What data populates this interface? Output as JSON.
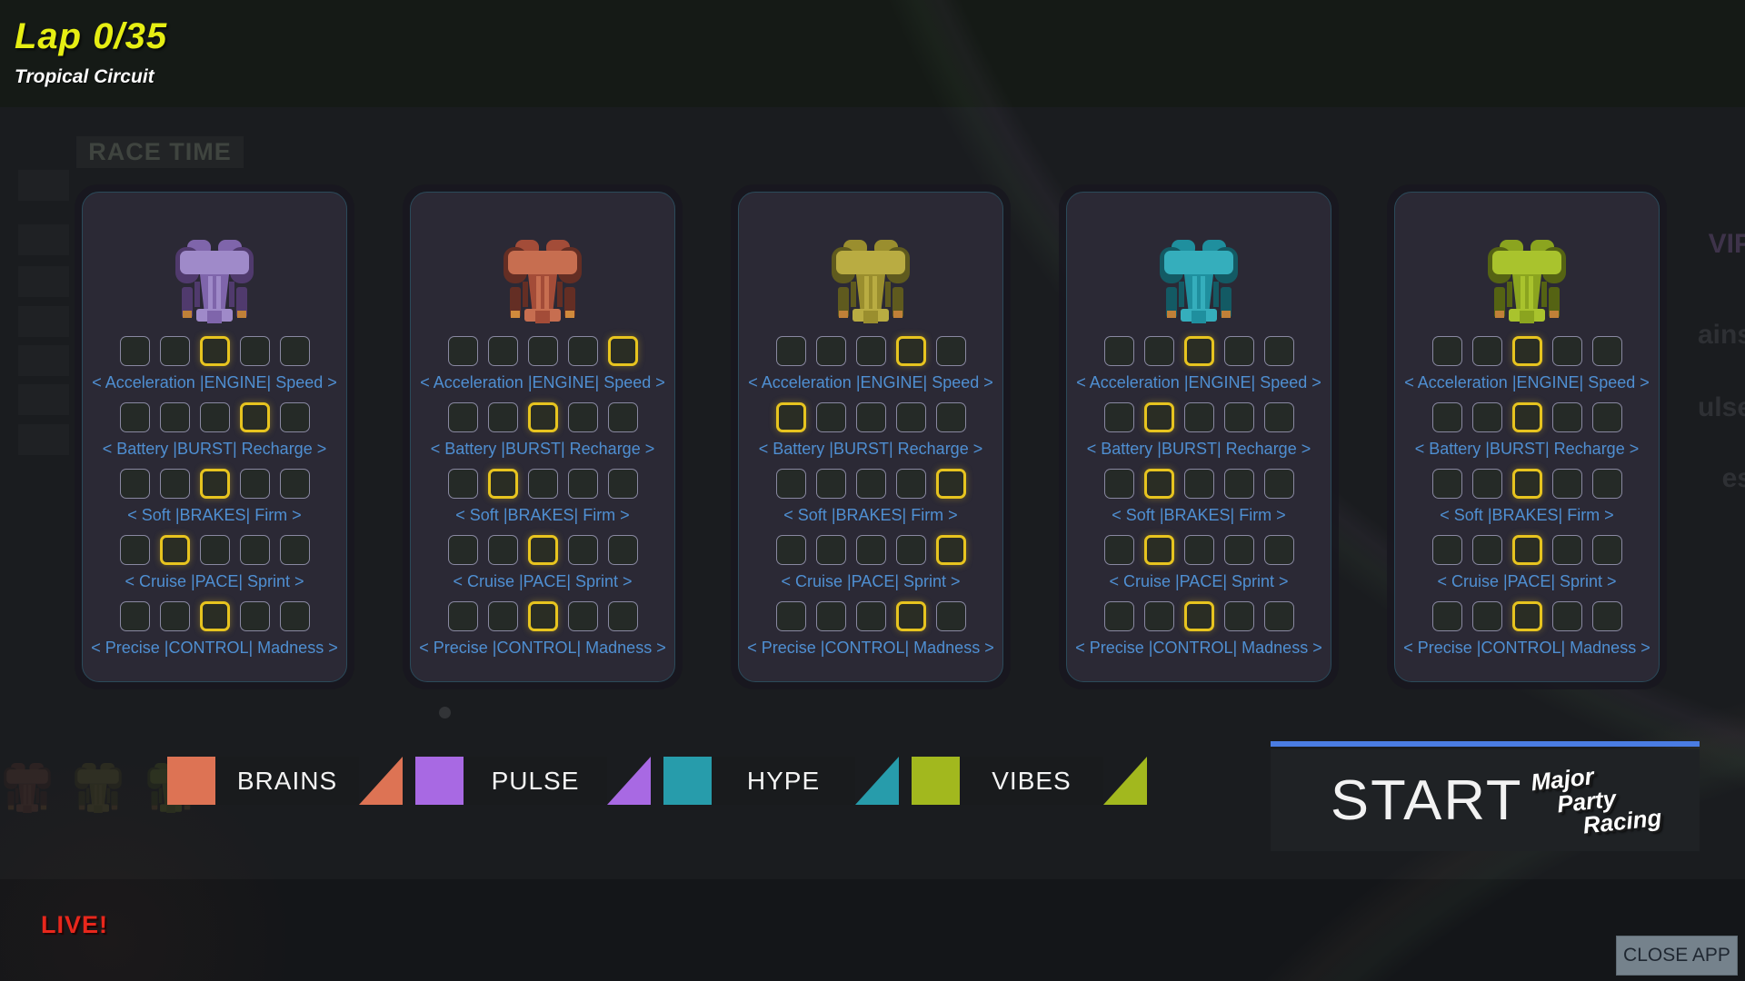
{
  "header": {
    "lap_label": "Lap 0/35",
    "circuit_name": "Tropical Circuit"
  },
  "background": {
    "race_time_label": "RACE TIME",
    "edge_fragments": [
      "VIP",
      "ains",
      "ulse",
      "es"
    ]
  },
  "stat_labels": [
    "< Acceleration |ENGINE| Speed >",
    "< Battery |BURST| Recharge >",
    "< Soft |BRAKES| Firm >",
    "< Cruise |PACE| Sprint >",
    "< Precise |CONTROL| Madness >"
  ],
  "steps_per_stat": 5,
  "panels": [
    {
      "car": "purple",
      "selections": [
        3,
        4,
        3,
        2,
        3
      ],
      "palette": {
        "light": "#9f8ac9",
        "mid": "#7f65ab",
        "dark": "#503a6d",
        "accent": "#c08038"
      }
    },
    {
      "car": "orange",
      "selections": [
        5,
        3,
        2,
        3,
        3
      ],
      "palette": {
        "light": "#c76e50",
        "mid": "#a34c38",
        "dark": "#642e24",
        "accent": "#d08a3c"
      }
    },
    {
      "car": "yellow",
      "selections": [
        4,
        1,
        5,
        5,
        4
      ],
      "palette": {
        "light": "#b9ac42",
        "mid": "#9a8e2e",
        "dark": "#5f5a1e",
        "accent": "#c08038"
      }
    },
    {
      "car": "teal",
      "selections": [
        3,
        2,
        2,
        2,
        3
      ],
      "palette": {
        "light": "#35aebc",
        "mid": "#1f8f9e",
        "dark": "#135a64",
        "accent": "#c08038"
      }
    },
    {
      "car": "lime",
      "selections": [
        3,
        3,
        3,
        3,
        3
      ],
      "palette": {
        "light": "#a9c32d",
        "mid": "#8ba41f",
        "dark": "#556313",
        "accent": "#c08038"
      }
    }
  ],
  "legend": [
    {
      "label": "BRAINS",
      "color": "#dd7354"
    },
    {
      "label": "PULSE",
      "color": "#a869e3"
    },
    {
      "label": "HYPE",
      "color": "#279cab"
    },
    {
      "label": "VIBES",
      "color": "#a2b81e"
    }
  ],
  "start": {
    "label": "START",
    "logo_lines": [
      "Major",
      "Party",
      "Racing"
    ],
    "accent_line_color": "#4a7ce2"
  },
  "footer": {
    "live_label": "LIVE!",
    "close_app_label": "CLOSE APP"
  },
  "ui_colors": {
    "highlight": "#e7c41f",
    "stat_label": "#4f8fd2",
    "live_red": "#e8271c"
  }
}
